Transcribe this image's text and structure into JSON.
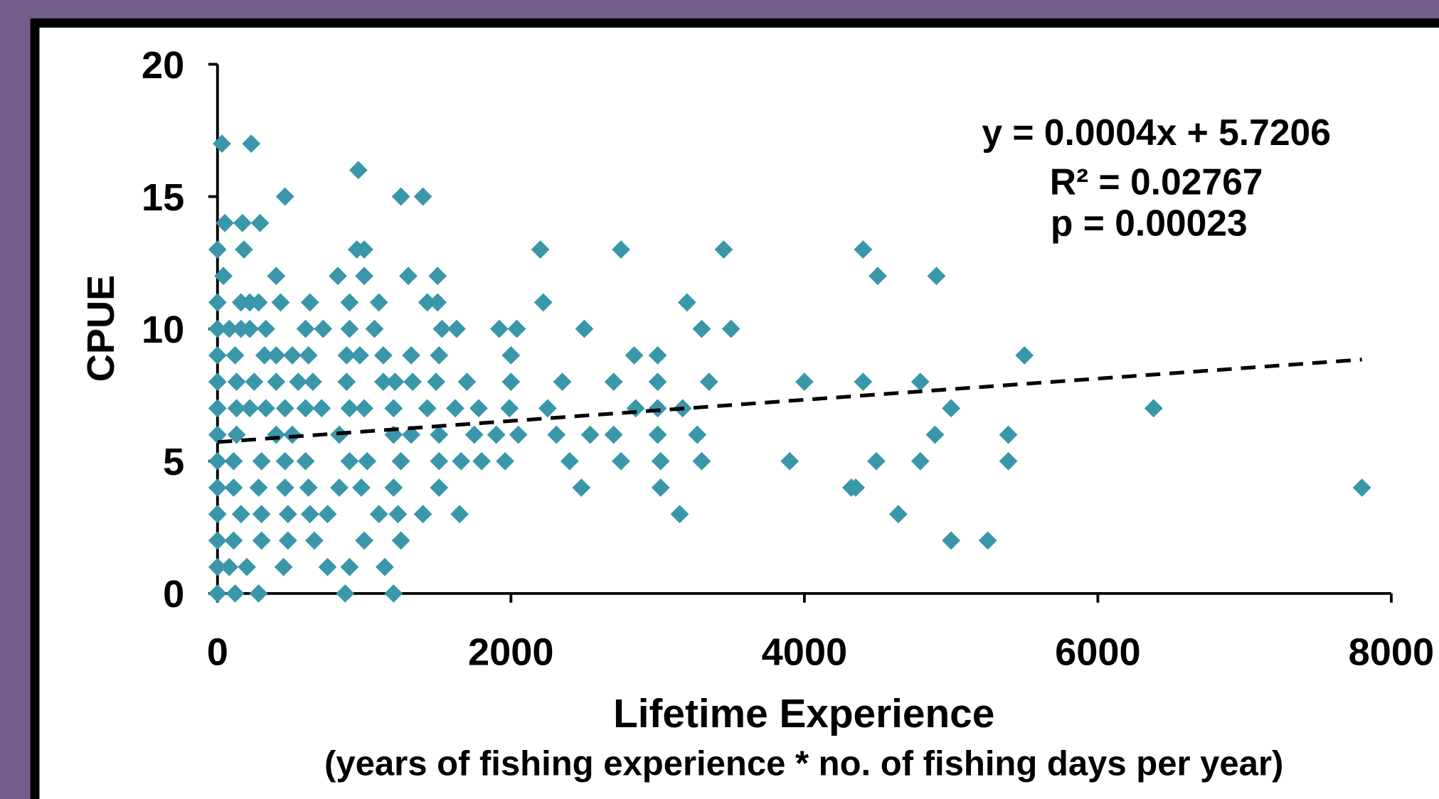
{
  "chart_data": {
    "type": "scatter",
    "x_label": "Lifetime Experience",
    "x_sublabel": "(years of fishing experience * no. of fishing days per year)",
    "y_label": "CPUE",
    "annotations": [
      "y = 0.0004x + 5.7206",
      "R² = 0.02767",
      "p = 0.00023"
    ],
    "trendline": {
      "slope": 0.0004,
      "intercept": 5.7206,
      "x": [
        0,
        7800
      ],
      "color": "#000000",
      "dashed": true
    },
    "xlim": [
      0,
      8000
    ],
    "xticks": [
      0,
      2000,
      4000,
      6000,
      8000
    ],
    "ylim": [
      0,
      20
    ],
    "yticks": [
      0,
      5,
      10,
      15,
      20
    ],
    "grid": false,
    "series": [
      {
        "name": "CPUE",
        "color": "#3a97a9",
        "x": [
          30,
          230,
          960,
          460,
          1250,
          1400,
          50,
          170,
          290,
          0,
          180,
          950,
          1000,
          2200,
          2750,
          3450,
          4400,
          40,
          400,
          820,
          1000,
          1300,
          1500,
          4500,
          4900,
          0,
          160,
          220,
          280,
          430,
          630,
          900,
          1100,
          1430,
          1500,
          2220,
          3200,
          0,
          80,
          160,
          220,
          330,
          600,
          720,
          900,
          1070,
          1530,
          1630,
          1920,
          2040,
          2500,
          3300,
          3500,
          0,
          120,
          320,
          400,
          510,
          620,
          880,
          970,
          1130,
          1320,
          1510,
          2000,
          2840,
          3000,
          5500,
          0,
          130,
          250,
          400,
          550,
          650,
          880,
          1130,
          1210,
          1330,
          1490,
          1700,
          2000,
          2350,
          2700,
          3000,
          3350,
          4000,
          4400,
          4790,
          0,
          130,
          220,
          330,
          460,
          600,
          710,
          900,
          1000,
          1200,
          1430,
          1620,
          1780,
          1990,
          2250,
          2850,
          3000,
          3170,
          5000,
          6380,
          0,
          130,
          400,
          510,
          830,
          1200,
          1320,
          1510,
          1750,
          1900,
          2050,
          2310,
          2540,
          2700,
          3000,
          3270,
          4890,
          5390,
          0,
          110,
          300,
          460,
          600,
          900,
          1020,
          1250,
          1510,
          1660,
          1800,
          1960,
          2400,
          2750,
          3020,
          3300,
          3900,
          4490,
          4790,
          5390,
          0,
          110,
          280,
          460,
          620,
          830,
          980,
          1200,
          1510,
          2480,
          3020,
          4320,
          4350,
          7800,
          0,
          160,
          300,
          480,
          630,
          750,
          1100,
          1230,
          1400,
          1650,
          3150,
          4640,
          0,
          110,
          300,
          480,
          660,
          1000,
          1250,
          5000,
          5250,
          0,
          80,
          200,
          450,
          750,
          900,
          1140,
          0,
          120,
          280,
          870,
          1200
        ],
        "values": [
          17,
          17,
          16,
          15,
          15,
          15,
          14,
          14,
          14,
          13,
          13,
          13,
          13,
          13,
          13,
          13,
          13,
          12,
          12,
          12,
          12,
          12,
          12,
          12,
          12,
          11,
          11,
          11,
          11,
          11,
          11,
          11,
          11,
          11,
          11,
          11,
          11,
          10,
          10,
          10,
          10,
          10,
          10,
          10,
          10,
          10,
          10,
          10,
          10,
          10,
          10,
          10,
          10,
          9,
          9,
          9,
          9,
          9,
          9,
          9,
          9,
          9,
          9,
          9,
          9,
          9,
          9,
          9,
          8,
          8,
          8,
          8,
          8,
          8,
          8,
          8,
          8,
          8,
          8,
          8,
          8,
          8,
          8,
          8,
          8,
          8,
          8,
          8,
          7,
          7,
          7,
          7,
          7,
          7,
          7,
          7,
          7,
          7,
          7,
          7,
          7,
          7,
          7,
          7,
          7,
          7,
          7,
          7,
          6,
          6,
          6,
          6,
          6,
          6,
          6,
          6,
          6,
          6,
          6,
          6,
          6,
          6,
          6,
          6,
          6,
          6,
          5,
          5,
          5,
          5,
          5,
          5,
          5,
          5,
          5,
          5,
          5,
          5,
          5,
          5,
          5,
          5,
          5,
          5,
          5,
          5,
          4,
          4,
          4,
          4,
          4,
          4,
          4,
          4,
          4,
          4,
          4,
          4,
          4,
          4,
          3,
          3,
          3,
          3,
          3,
          3,
          3,
          3,
          3,
          3,
          3,
          3,
          2,
          2,
          2,
          2,
          2,
          2,
          2,
          2,
          2,
          1,
          1,
          1,
          1,
          1,
          1,
          1,
          0,
          0,
          0,
          0,
          0
        ]
      }
    ]
  }
}
